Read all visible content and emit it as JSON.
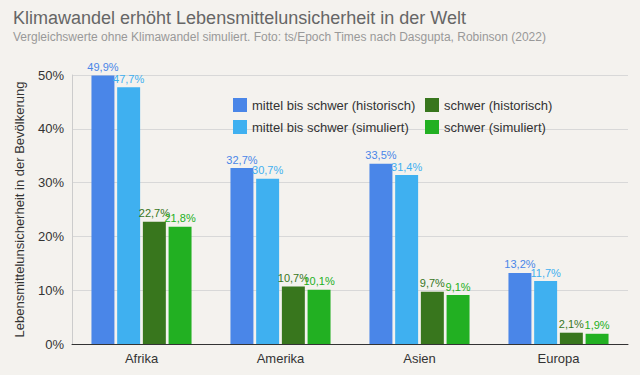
{
  "chart_data": {
    "type": "bar",
    "title": "Klimawandel erhöht Lebensmittelunsicherheit in der Welt",
    "subtitle": "Vergleichswerte ohne Klimawandel simuliert. Foto: ts/Epoch Times nach Dasgupta, Robinson (2022)",
    "y_label": "Lebensmittelunsicherheit in der Bevölkerung",
    "categories": [
      "Afrika",
      "Amerika",
      "Asien",
      "Europa"
    ],
    "series": [
      {
        "name": "mittel bis schwer (historisch)",
        "color": "#4a86e8",
        "values": [
          49.9,
          32.7,
          33.5,
          13.2
        ],
        "value_labels": [
          "49,9%",
          "32,7%",
          "33,5%",
          "13,2%"
        ]
      },
      {
        "name": "mittel bis schwer (simuliert)",
        "color": "#3fb0f0",
        "values": [
          47.7,
          30.7,
          31.4,
          11.7
        ],
        "value_labels": [
          "47,7%",
          "30,7%",
          "31,4%",
          "11,7%"
        ]
      },
      {
        "name": "schwer (historisch)",
        "color": "#38761d",
        "values": [
          22.7,
          10.7,
          9.7,
          2.1
        ],
        "value_labels": [
          "22,7%",
          "10,7%",
          "9,7%",
          "2,1%"
        ]
      },
      {
        "name": "schwer (simuliert)",
        "color": "#22b022",
        "values": [
          21.8,
          10.1,
          9.1,
          1.9
        ],
        "value_labels": [
          "21,8%",
          "10,1%",
          "9,1%",
          "1,9%"
        ]
      }
    ],
    "ylim": [
      0,
      50
    ],
    "yticks": [
      {
        "value": 0,
        "label": "0%"
      },
      {
        "value": 10,
        "label": "10%"
      },
      {
        "value": 20,
        "label": "20%"
      },
      {
        "value": 30,
        "label": "30%"
      },
      {
        "value": 40,
        "label": "40%"
      },
      {
        "value": 50,
        "label": "50%"
      }
    ],
    "grid": true,
    "legend": "top",
    "data_labels": true
  }
}
